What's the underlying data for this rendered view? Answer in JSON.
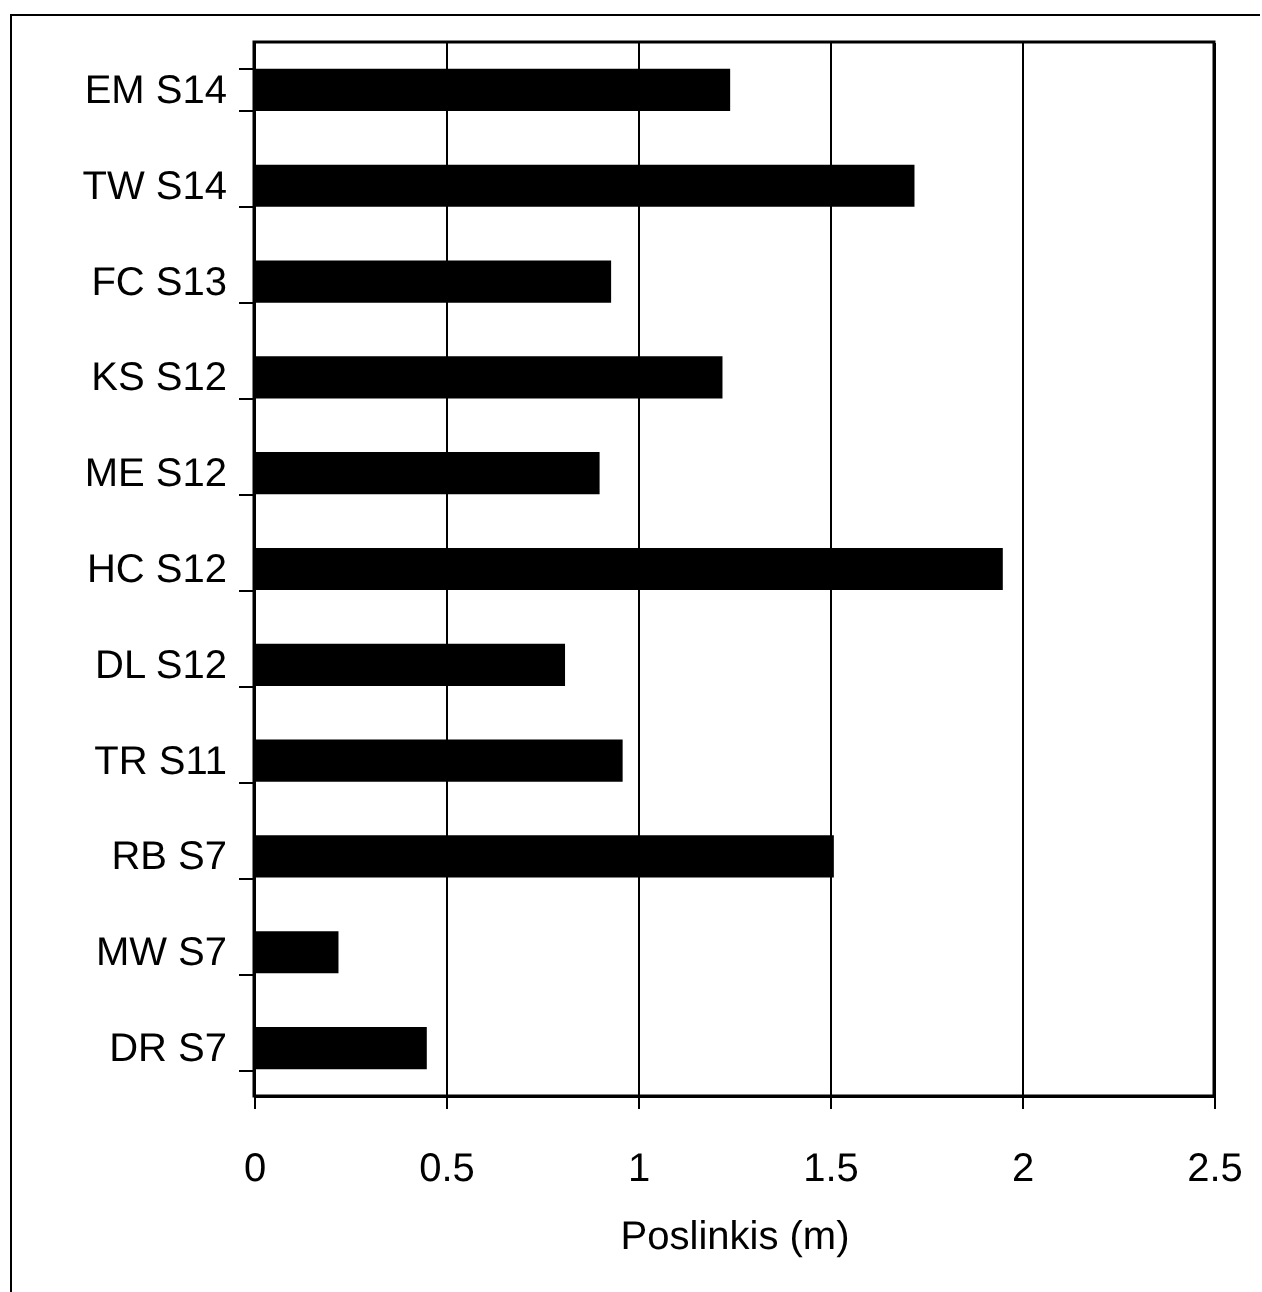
{
  "chart_data": {
    "type": "bar",
    "orientation": "horizontal",
    "xlabel": "Poslinkis (m)",
    "categories": [
      "EM S14",
      "TW S14",
      "FC S13",
      "KS S12",
      "ME S12",
      "HC S12",
      "DL S12",
      "TR S11",
      "RB S7",
      "MW S7",
      "DR S7"
    ],
    "values": [
      1.24,
      1.72,
      0.93,
      1.22,
      0.9,
      1.95,
      0.81,
      0.96,
      1.51,
      0.22,
      0.45
    ],
    "color": "#000000",
    "xlim": [
      0,
      2.5
    ],
    "xticks": [
      0,
      0.5,
      1,
      1.5,
      2,
      2.5
    ],
    "grid": "x"
  }
}
